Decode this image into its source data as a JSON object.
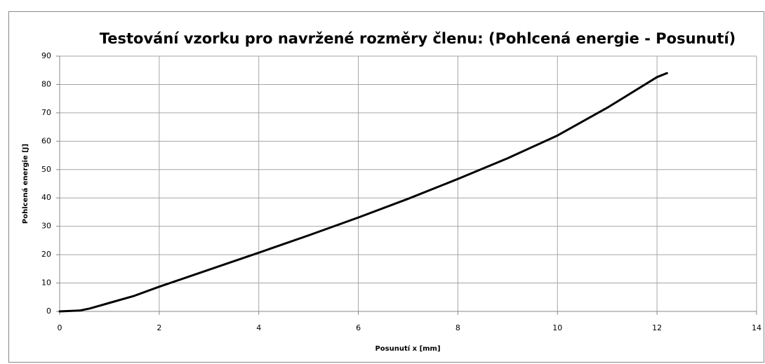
{
  "chart_data": {
    "type": "line",
    "title": "Testování vzorku pro navržené rozměry členu: (Pohlcená energie - Posunutí)",
    "x_label": "Posunutí x [mm]",
    "y_label": "Pohlcená energie [J]",
    "x": [
      0,
      0.4,
      0.6,
      0.8,
      1,
      1.5,
      2,
      3,
      4,
      5,
      6,
      7,
      8,
      9,
      10,
      11,
      12,
      12.2
    ],
    "values": [
      0,
      0.3,
      1,
      2,
      3,
      5.5,
      8.7,
      14.7,
      20.7,
      26.8,
      33.1,
      39.7,
      46.7,
      54,
      62,
      71.8,
      82.6,
      84
    ],
    "color": "#000000",
    "xlim": [
      0,
      14
    ],
    "xticks": [
      0,
      2,
      4,
      6,
      8,
      10,
      12,
      14
    ],
    "ylim": [
      0,
      90
    ],
    "yticks": [
      0,
      10,
      20,
      30,
      40,
      50,
      60,
      70,
      80,
      90
    ],
    "grid": true
  }
}
